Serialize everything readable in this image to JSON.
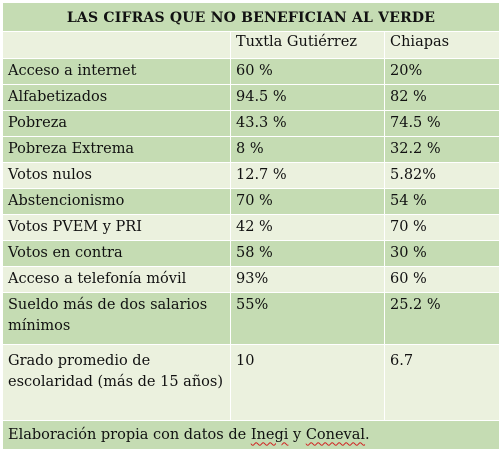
{
  "title": "LAS CIFRAS QUE NO BENEFICIAN AL VERDE",
  "columns": [
    "",
    "Tuxtla Gutiérrez",
    "Chiapas"
  ],
  "rows": [
    {
      "label": "Acceso a internet",
      "tuxtla": "60 %",
      "chiapas": "20%"
    },
    {
      "label": "Alfabetizados",
      "tuxtla": "94.5 %",
      "chiapas": "82 %"
    },
    {
      "label": "Pobreza",
      "tuxtla": "43.3 %",
      "chiapas": "74.5 %"
    },
    {
      "label": "Pobreza Extrema",
      "tuxtla": "8 %",
      "chiapas": "32.2 %"
    },
    {
      "label": "Votos nulos",
      "tuxtla": "12.7 %",
      "chiapas": "5.82%"
    },
    {
      "label": "Abstencionismo",
      "tuxtla": "70 %",
      "chiapas": "54 %"
    },
    {
      "label": "Votos PVEM y PRI",
      "tuxtla": "42 %",
      "chiapas": "70 %"
    },
    {
      "label": "Votos en contra",
      "tuxtla": "58 %",
      "chiapas": "30 %"
    },
    {
      "label": "Acceso a telefonía móvil",
      "tuxtla": "93%",
      "chiapas": "60 %"
    },
    {
      "label": "Sueldo más de dos salarios mínimos",
      "tuxtla": "55%",
      "chiapas": "25.2 %"
    },
    {
      "label": "Grado promedio de escolaridad (más de 15 años)",
      "tuxtla": "10",
      "chiapas": "6.7"
    }
  ],
  "footer": {
    "prefix": "Elaboración propia con datos de ",
    "source1": "Inegi",
    "middle": " y ",
    "source2": "Coneval",
    "suffix": "."
  },
  "colors": {
    "dark_green": "#c5dcb3",
    "light_green": "#ebf1de",
    "border": "#ffffff"
  }
}
